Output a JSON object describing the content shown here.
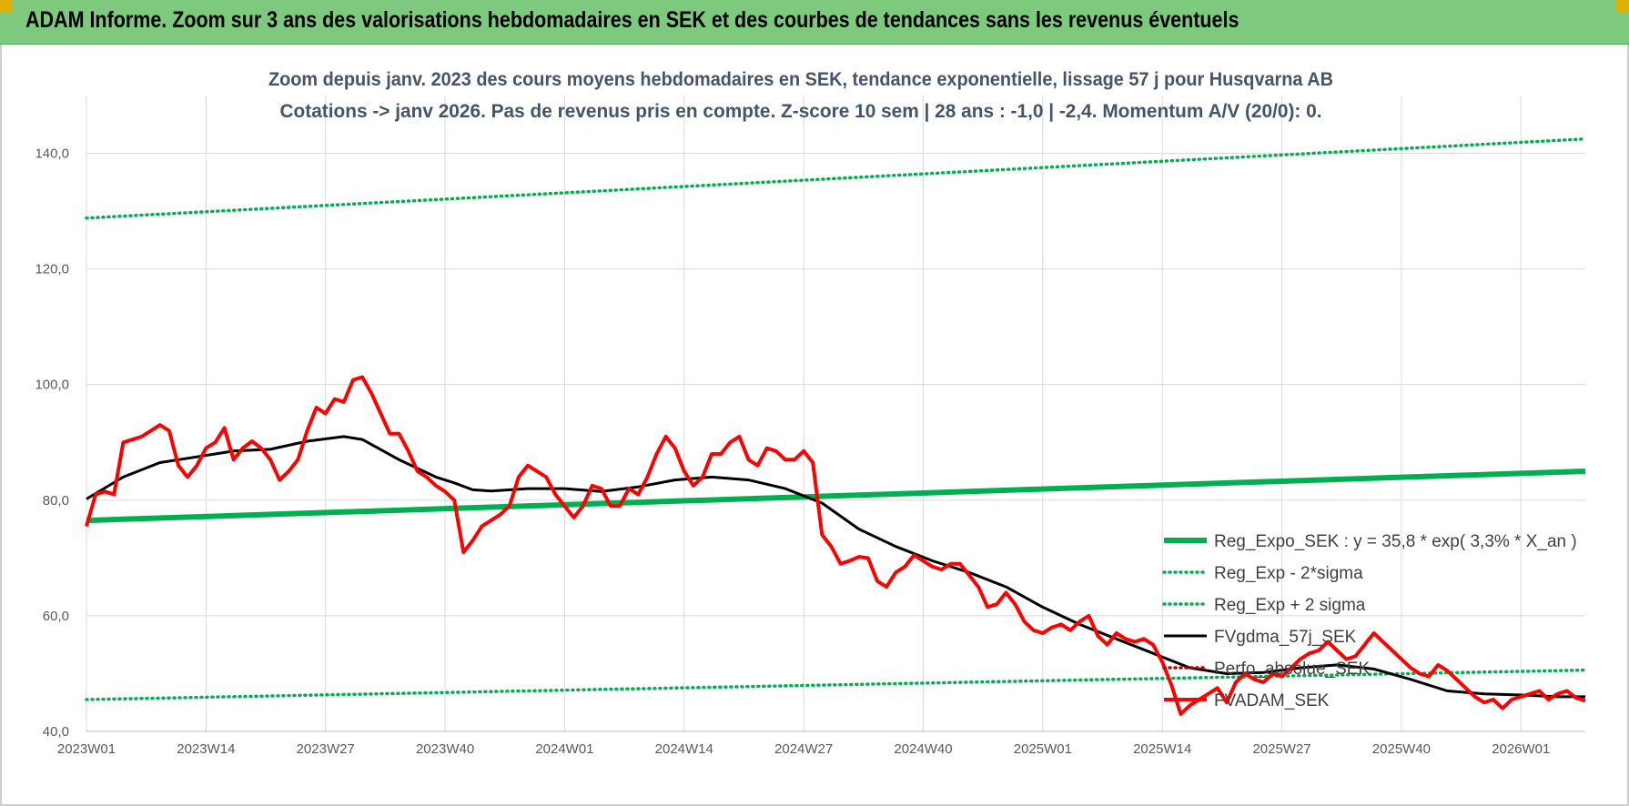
{
  "banner": {
    "title": "ADAM Informe. Zoom sur 3 ans des valorisations hebdomadaires en SEK et des courbes de tendances sans les revenus éventuels"
  },
  "chart_data": {
    "type": "line",
    "title": "Zoom depuis janv. 2023 des cours moyens hebdomadaires en SEK, tendance exponentielle, lissage 57 j pour Husqvarna AB",
    "subtitle": "Cotations -> janv 2026. Pas de revenus pris en compte. Z-score 10 sem | 28 ans : -1,0 | -2,4. Momentum A/V (20/0): 0.",
    "ylim": [
      40,
      150
    ],
    "yticks": [
      "40,0",
      "60,0",
      "80,0",
      "100,0",
      "120,0",
      "140,0"
    ],
    "ytick_values": [
      40,
      60,
      80,
      100,
      120,
      140
    ],
    "x_range": [
      0,
      163
    ],
    "xticks": [
      "2023W01",
      "2023W14",
      "2023W27",
      "2023W40",
      "2024W01",
      "2024W14",
      "2024W27",
      "2024W40",
      "2025W01",
      "2025W14",
      "2025W27",
      "2025W40",
      "2026W01"
    ],
    "xtick_weeks": [
      0,
      13,
      26,
      39,
      52,
      65,
      78,
      91,
      104,
      117,
      130,
      143,
      156
    ],
    "grid": true,
    "legend_position": "bottom-right",
    "colors": {
      "reg_expo": "#00b050",
      "sigma": "#00b050",
      "gdma": "#000000",
      "perfo": "#c00000",
      "adam": "#ff0000"
    },
    "series": [
      {
        "name": "Reg_Expo_SEK : y = 35,8 * exp( 3,3% * X_an )",
        "style": "solid-thick",
        "color": "#00b050",
        "x": [
          0,
          163
        ],
        "y": [
          76.5,
          85.0
        ]
      },
      {
        "name": "Reg_Exp - 2*sigma",
        "style": "dotted",
        "color": "#00b050",
        "x": [
          0,
          163
        ],
        "y": [
          45.5,
          50.6
        ]
      },
      {
        "name": "Reg_Exp + 2 sigma",
        "style": "dotted",
        "color": "#00b050",
        "x": [
          0,
          163
        ],
        "y": [
          128.8,
          142.5
        ]
      },
      {
        "name": "FVgdma_57j_SEK",
        "style": "solid",
        "color": "#000000",
        "x": [
          0,
          4,
          8,
          12,
          16,
          20,
          24,
          28,
          30,
          34,
          38,
          40,
          42,
          44,
          48,
          52,
          56,
          60,
          64,
          68,
          72,
          76,
          80,
          84,
          88,
          92,
          96,
          100,
          104,
          108,
          112,
          116,
          120,
          124,
          128,
          132,
          136,
          140,
          144,
          148,
          152,
          156,
          160,
          163
        ],
        "y": [
          80.2,
          84.0,
          86.5,
          87.5,
          88.5,
          88.8,
          90.2,
          91.0,
          90.5,
          87.0,
          84.0,
          83.0,
          81.8,
          81.6,
          82.0,
          82.0,
          81.5,
          82.3,
          83.5,
          84.0,
          83.5,
          82.0,
          79.5,
          75.0,
          72.0,
          69.5,
          67.5,
          65.0,
          61.5,
          58.5,
          56.0,
          53.5,
          51.0,
          50.0,
          50.2,
          51.0,
          51.5,
          50.8,
          49.0,
          47.0,
          46.5,
          46.3,
          46.0,
          46.0
        ]
      },
      {
        "name": "Perfo_absolue_SEK",
        "style": "dotted",
        "color": "#c00000",
        "x": [],
        "y": []
      },
      {
        "name": "FVADAM_SEK",
        "style": "solid-thick",
        "color": "#ff0000",
        "x": [
          0,
          1,
          2,
          3,
          4,
          5,
          6,
          7,
          8,
          9,
          10,
          11,
          12,
          13,
          14,
          15,
          16,
          17,
          18,
          19,
          20,
          21,
          22,
          23,
          24,
          25,
          26,
          27,
          28,
          29,
          30,
          31,
          32,
          33,
          34,
          35,
          36,
          37,
          38,
          39,
          40,
          41,
          42,
          43,
          44,
          45,
          46,
          47,
          48,
          49,
          50,
          51,
          52,
          53,
          54,
          55,
          56,
          57,
          58,
          59,
          60,
          61,
          62,
          63,
          64,
          65,
          66,
          67,
          68,
          69,
          70,
          71,
          72,
          73,
          74,
          75,
          76,
          77,
          78,
          79,
          80,
          81,
          82,
          83,
          84,
          85,
          86,
          87,
          88,
          89,
          90,
          91,
          92,
          93,
          94,
          95,
          96,
          97,
          98,
          99,
          100,
          101,
          102,
          103,
          104,
          105,
          106,
          107,
          108,
          109,
          110,
          111,
          112,
          113,
          114,
          115,
          116,
          117,
          118,
          119,
          120,
          121,
          122,
          123,
          124,
          125,
          126,
          127,
          128,
          129,
          130,
          131,
          132,
          133,
          134,
          135,
          136,
          137,
          138,
          139,
          140,
          141,
          142,
          143,
          144,
          145,
          146,
          147,
          148,
          149,
          150,
          151,
          152,
          153,
          154,
          155,
          156,
          157,
          158,
          159,
          160,
          161,
          162,
          163
        ],
        "y": [
          75.5,
          81.0,
          81.5,
          81.0,
          90.0,
          90.5,
          91.0,
          92.0,
          93.0,
          92.0,
          86.0,
          84.0,
          86.0,
          89.0,
          90.0,
          92.5,
          87.0,
          89.0,
          90.2,
          89.0,
          87.0,
          83.5,
          85.0,
          87.0,
          92.0,
          96.0,
          95.0,
          97.5,
          97.0,
          100.8,
          101.3,
          98.5,
          95.0,
          91.5,
          91.5,
          88.5,
          85.0,
          84.0,
          82.5,
          81.5,
          80.0,
          71.0,
          73.0,
          75.5,
          76.5,
          77.5,
          79.0,
          84.0,
          86.0,
          85.0,
          84.0,
          81.0,
          79.0,
          77.0,
          79.0,
          82.5,
          82.0,
          79.0,
          79.0,
          82.0,
          81.0,
          84.0,
          88.0,
          91.0,
          89.0,
          85.0,
          82.5,
          84.0,
          88.0,
          88.0,
          90.0,
          91.0,
          87.0,
          86.0,
          89.0,
          88.5,
          87.0,
          87.0,
          88.5,
          86.5,
          74.0,
          72.0,
          69.0,
          69.5,
          70.2,
          70.0,
          66.0,
          65.0,
          67.5,
          68.5,
          70.5,
          69.5,
          68.5,
          68.0,
          69.0,
          69.0,
          67.0,
          65.0,
          61.5,
          62.0,
          64.0,
          62.0,
          59.0,
          57.5,
          57.0,
          58.0,
          58.5,
          57.5,
          59.0,
          60.0,
          56.5,
          55.0,
          57.0,
          56.0,
          55.5,
          56.0,
          55.0,
          52.0,
          48.0,
          43.0,
          44.5,
          45.5,
          46.5,
          47.5,
          45.0,
          48.5,
          50.0,
          49.0,
          48.5,
          50.0,
          49.5,
          51.0,
          52.5,
          53.5,
          54.0,
          55.5,
          54.0,
          52.5,
          53.0,
          55.0,
          57.0,
          55.5,
          54.0,
          52.5,
          51.0,
          50.0,
          49.5,
          51.5,
          50.5,
          49.0,
          47.5,
          46.0,
          45.0,
          45.5,
          44.0,
          45.5,
          46.0,
          46.5,
          47.0,
          45.5,
          46.5,
          47.0,
          45.8,
          45.3
        ]
      }
    ]
  }
}
